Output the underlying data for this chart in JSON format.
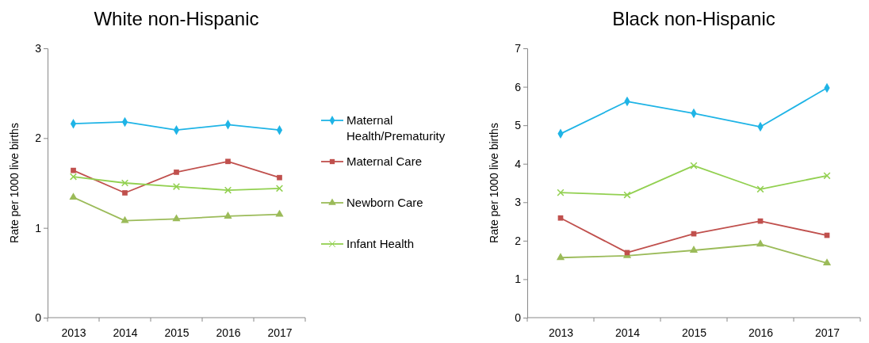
{
  "chart_data": [
    {
      "type": "line",
      "title": "White non-Hispanic",
      "ylabel": "Rate per 1000 live births",
      "categories": [
        "2013",
        "2014",
        "2015",
        "2016",
        "2017"
      ],
      "ylim": [
        0,
        3
      ],
      "yticks": [
        0,
        1,
        2,
        3
      ],
      "grid": false,
      "legend": "right",
      "series": [
        {
          "name": "Maternal Health/Prematurity",
          "color": "#1fb4e6",
          "marker": "diamond",
          "values": [
            2.16,
            2.18,
            2.09,
            2.15,
            2.09
          ]
        },
        {
          "name": "Maternal Care",
          "color": "#c0504d",
          "marker": "square",
          "values": [
            1.64,
            1.39,
            1.62,
            1.74,
            1.56
          ]
        },
        {
          "name": "Newborn Care",
          "color": "#9bbb59",
          "marker": "triangle",
          "values": [
            1.34,
            1.08,
            1.1,
            1.13,
            1.15
          ]
        },
        {
          "name": "Infant Health",
          "color": "#92d050",
          "marker": "cross",
          "values": [
            1.57,
            1.5,
            1.46,
            1.42,
            1.44
          ]
        }
      ]
    },
    {
      "type": "line",
      "title": "Black non-Hispanic",
      "ylabel": "Rate per 1000 live births",
      "categories": [
        "2013",
        "2014",
        "2015",
        "2016",
        "2017"
      ],
      "ylim": [
        0,
        7
      ],
      "yticks": [
        0,
        1,
        2,
        3,
        4,
        5,
        6,
        7
      ],
      "grid": false,
      "legend": false,
      "series": [
        {
          "color": "#1fb4e6",
          "marker": "diamond",
          "values": [
            4.78,
            5.62,
            5.31,
            4.96,
            5.97
          ]
        },
        {
          "color": "#c0504d",
          "marker": "square",
          "values": [
            2.59,
            1.69,
            2.18,
            2.51,
            2.14
          ]
        },
        {
          "color": "#9bbb59",
          "marker": "triangle",
          "values": [
            1.56,
            1.61,
            1.75,
            1.91,
            1.42
          ]
        },
        {
          "color": "#92d050",
          "marker": "cross",
          "values": [
            3.25,
            3.19,
            3.95,
            3.34,
            3.69
          ]
        }
      ]
    }
  ]
}
